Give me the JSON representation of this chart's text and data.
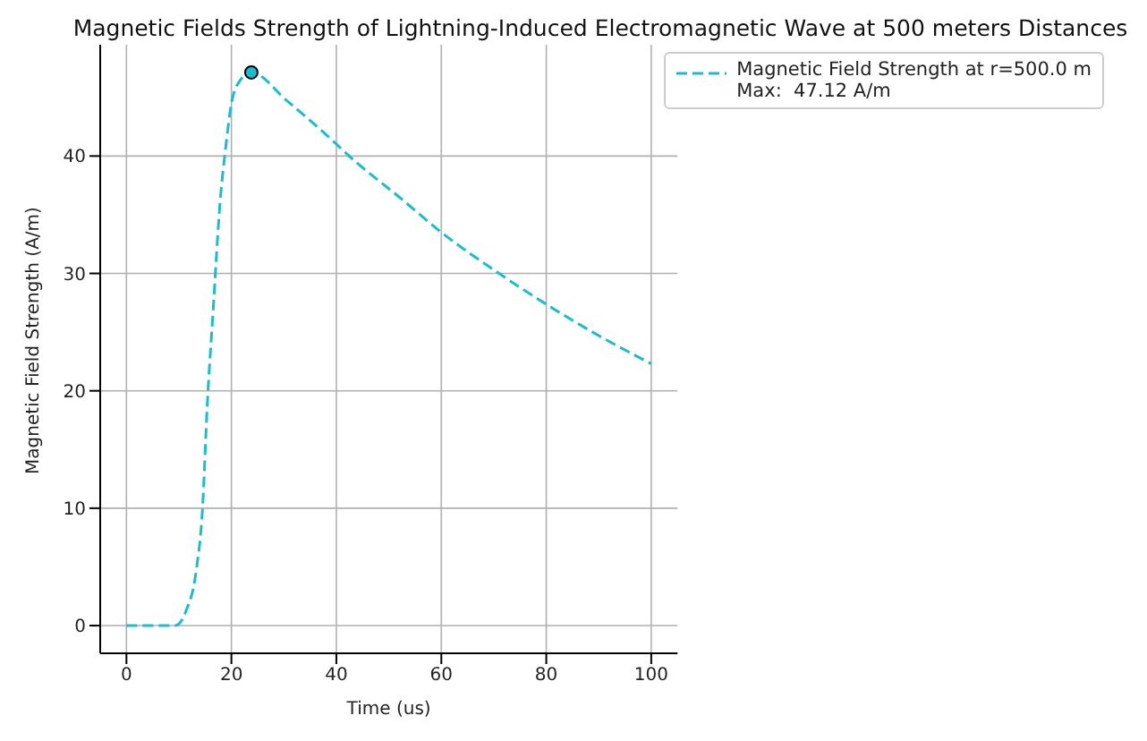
{
  "chart_data": {
    "type": "line",
    "title": "Magnetic Fields Strength of Lightning-Induced Electromagnetic Wave at 500 meters Distances",
    "xlabel": "Time (us)",
    "ylabel": "Magnetic Field Strength (A/m)",
    "xlim": [
      -5,
      105
    ],
    "ylim": [
      -2.36,
      49.48
    ],
    "xticks": [
      0,
      20,
      40,
      60,
      80,
      100
    ],
    "yticks": [
      0,
      10,
      20,
      30,
      40
    ],
    "grid": true,
    "legend": "top right",
    "series": [
      {
        "name": "Magnetic Field Strength at r=500.0 m\nMax:  47.12 A/m",
        "color": "#17becf",
        "line_style": "dashed",
        "marker": "none",
        "x": [
          0,
          5,
          9.3,
          11.4,
          13.3,
          14.5,
          15.4,
          16.5,
          17.9,
          18.8,
          20.1,
          21.6,
          23.8,
          30.6,
          39.8,
          41.7,
          52.8,
          60,
          70,
          79.9,
          90,
          100
        ],
        "values": [
          0,
          0,
          0,
          1.3,
          4.7,
          10,
          18.8,
          26.7,
          36.4,
          40.3,
          44.7,
          46.4,
          47.12,
          44.7,
          41.1,
          40.3,
          36.2,
          33.5,
          30.3,
          27.4,
          24.7,
          22.3
        ]
      },
      {
        "type": "scatter",
        "color": "#17becf",
        "marker": "circle",
        "x": [
          23.8
        ],
        "values": [
          47.12
        ]
      }
    ]
  }
}
